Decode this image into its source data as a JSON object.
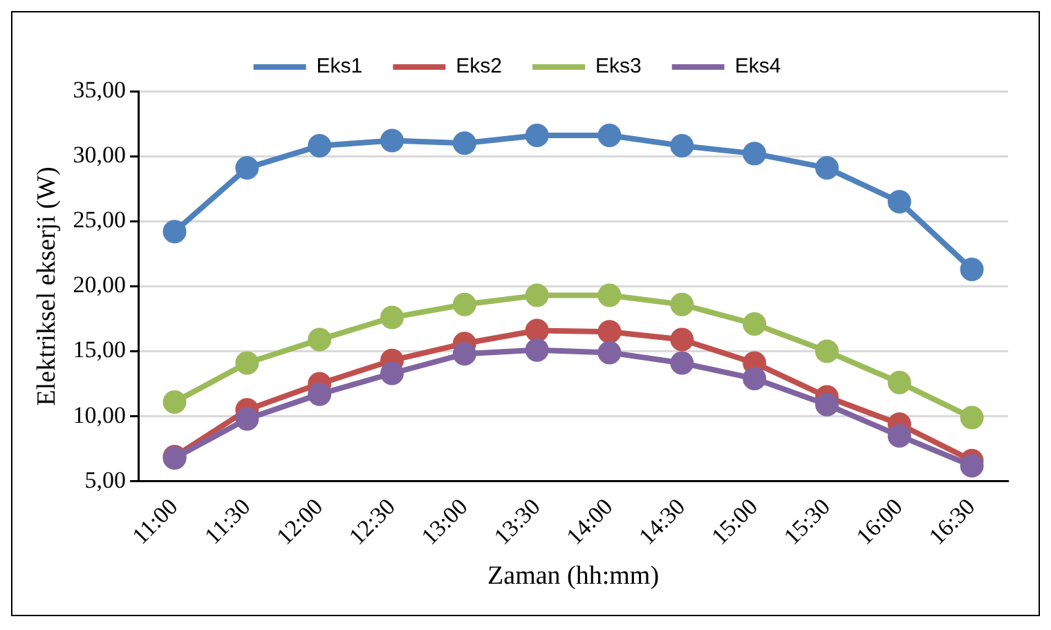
{
  "chart_data": {
    "type": "line",
    "xlabel": "Zaman (hh:mm)",
    "ylabel": "Elektriksel ekserji (W)",
    "categories": [
      "11:00",
      "11:30",
      "12:00",
      "12:30",
      "13:00",
      "13:30",
      "14:00",
      "14:30",
      "15:00",
      "15:30",
      "16:00",
      "16:30"
    ],
    "series": [
      {
        "name": "Eks1",
        "color": "#4f81bd",
        "values": [
          24.2,
          29.1,
          30.8,
          31.2,
          31.0,
          31.6,
          31.6,
          30.8,
          30.2,
          29.1,
          26.5,
          21.3
        ]
      },
      {
        "name": "Eks2",
        "color": "#c0504d",
        "values": [
          6.9,
          10.5,
          12.5,
          14.3,
          15.6,
          16.6,
          16.5,
          15.9,
          14.1,
          11.5,
          9.4,
          6.6
        ]
      },
      {
        "name": "Eks3",
        "color": "#9bbb59",
        "values": [
          11.1,
          14.1,
          15.9,
          17.6,
          18.6,
          19.3,
          19.3,
          18.6,
          17.1,
          15.0,
          12.6,
          9.9
        ]
      },
      {
        "name": "Eks4",
        "color": "#8064a2",
        "values": [
          6.8,
          9.8,
          11.7,
          13.3,
          14.8,
          15.1,
          14.9,
          14.1,
          12.9,
          10.9,
          8.5,
          6.2
        ]
      }
    ],
    "ylim": [
      5,
      35
    ],
    "yticks": [
      {
        "value": 5,
        "label": "5,00"
      },
      {
        "value": 10,
        "label": "10,00"
      },
      {
        "value": 15,
        "label": "15,00"
      },
      {
        "value": 20,
        "label": "20,00"
      },
      {
        "value": 25,
        "label": "25,00"
      },
      {
        "value": 30,
        "label": "30,00"
      },
      {
        "value": 35,
        "label": "35,00"
      }
    ],
    "grid": "y",
    "legend": "top",
    "marker": "circle",
    "line_style": "solid"
  }
}
